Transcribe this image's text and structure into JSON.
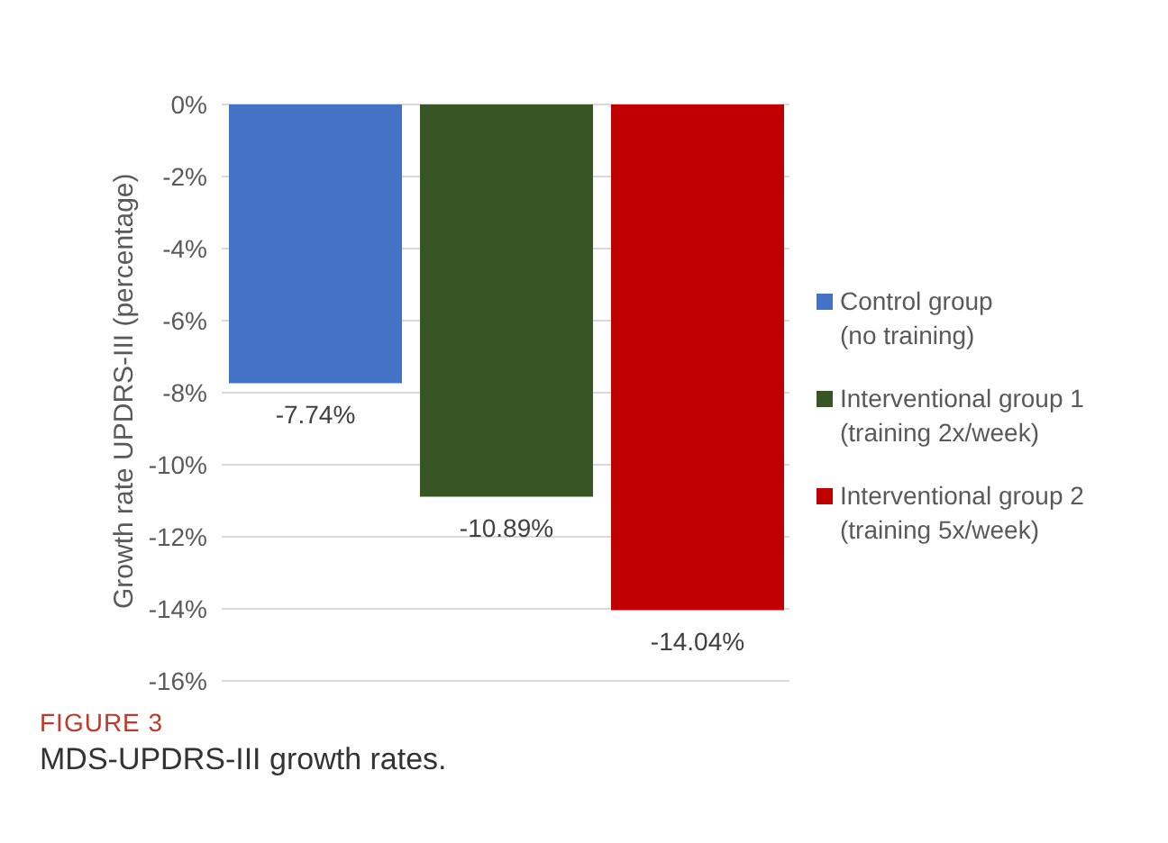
{
  "chart_data": {
    "type": "bar",
    "title": "FIGURE 3",
    "subtitle": "MDS-UPDRS-III growth rates.",
    "ylabel": "Growth rate UPDRS-III (percentage)",
    "categories": [
      null
    ],
    "series": [
      {
        "name": "Control group\n(no training)",
        "color": "#4472c4",
        "values": [
          -7.74
        ],
        "value_labels": [
          "-7.74%"
        ]
      },
      {
        "name": "Interventional group 1\n(training 2x/week)",
        "color": "#375623",
        "values": [
          -10.89
        ],
        "value_labels": [
          "-10.89%"
        ]
      },
      {
        "name": "Interventional group 2\n(training 5x/week)",
        "color": "#c00000",
        "values": [
          -14.04
        ],
        "value_labels": [
          "-14.04%"
        ]
      }
    ],
    "ylim": [
      -16,
      0
    ],
    "yticks": [
      {
        "value": 0,
        "label": "0%"
      },
      {
        "value": -2,
        "label": "-2%"
      },
      {
        "value": -4,
        "label": "-4%"
      },
      {
        "value": -6,
        "label": "-6%"
      },
      {
        "value": -8,
        "label": "-8%"
      },
      {
        "value": -10,
        "label": "-10%"
      },
      {
        "value": -12,
        "label": "-12%"
      },
      {
        "value": -14,
        "label": "-14%"
      },
      {
        "value": -16,
        "label": "-16%"
      }
    ],
    "grid": "y",
    "legend": "right"
  }
}
